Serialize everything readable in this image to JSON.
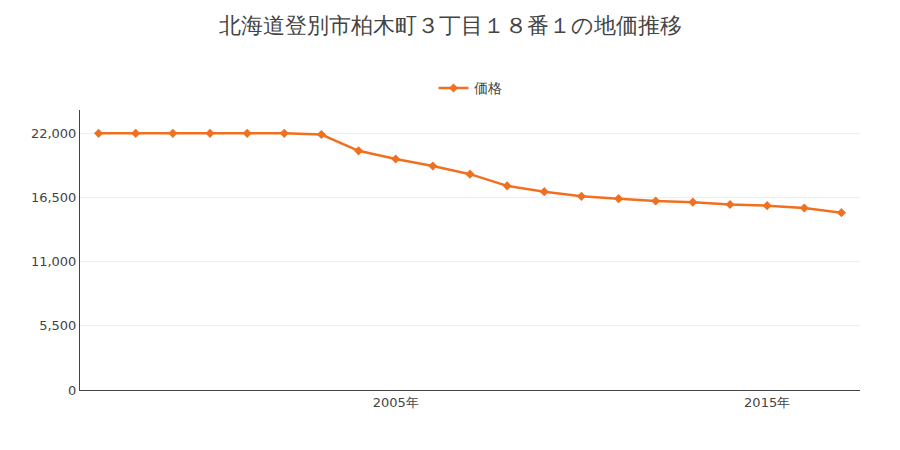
{
  "chart_data": {
    "type": "line",
    "title": "北海道登別市柏木町３丁目１８番１の地価推移",
    "x": [
      1997,
      1998,
      1999,
      2000,
      2001,
      2002,
      2003,
      2004,
      2005,
      2006,
      2007,
      2008,
      2009,
      2010,
      2011,
      2012,
      2013,
      2014,
      2015,
      2016,
      2017
    ],
    "series": [
      {
        "name": "価格",
        "color": "#f07020",
        "marker": "diamond",
        "values": [
          22000,
          22000,
          22000,
          22000,
          22000,
          22000,
          21900,
          20500,
          19800,
          19200,
          18500,
          17500,
          17000,
          16600,
          16400,
          16200,
          16100,
          15900,
          15800,
          15600,
          15200
        ]
      }
    ],
    "xlim": [
      1996.5,
      2017.5
    ],
    "xticks": [
      {
        "value": 2005,
        "label": "2005年"
      },
      {
        "value": 2015,
        "label": "2015年"
      }
    ],
    "ylim": [
      0,
      24000
    ],
    "yticks": [
      0,
      {
        "value": 5500,
        "label": "5,500"
      },
      {
        "value": 11000,
        "label": "11,000"
      },
      {
        "value": 16500,
        "label": "16,500"
      },
      {
        "value": 22000,
        "label": "22,000"
      }
    ],
    "grid": "y",
    "legend": "top"
  }
}
